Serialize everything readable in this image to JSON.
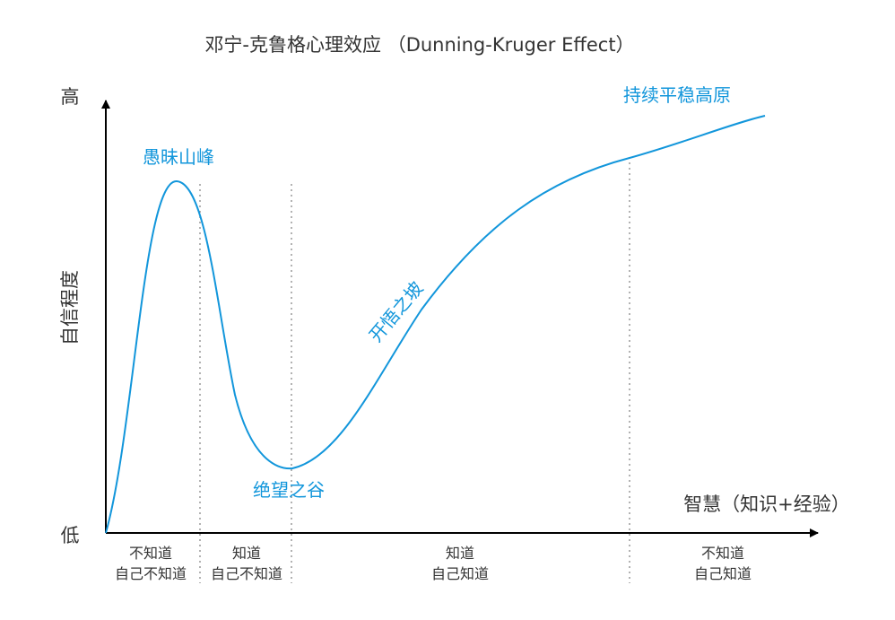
{
  "title": "邓宁-克鲁格心理效应 （Dunning-Kruger Effect）",
  "y_axis": {
    "label": "自信程度",
    "high": "高",
    "low": "低"
  },
  "x_axis": {
    "label": "智慧（知识+经验）"
  },
  "stages": [
    {
      "name": "愚昧山峰"
    },
    {
      "name": "绝望之谷"
    },
    {
      "name": "开悟之坡"
    },
    {
      "name": "持续平稳高原"
    }
  ],
  "phases": [
    {
      "line1": "不知道",
      "line2": "自己不知道"
    },
    {
      "line1": "知道",
      "line2": "自己不知道"
    },
    {
      "line1": "知道",
      "line2": "自己知道"
    },
    {
      "line1": "不知道",
      "line2": "自己知道"
    }
  ],
  "colors": {
    "curve": "#1296db",
    "axis": "#000000",
    "text": "#333333",
    "divider": "#999999"
  }
}
